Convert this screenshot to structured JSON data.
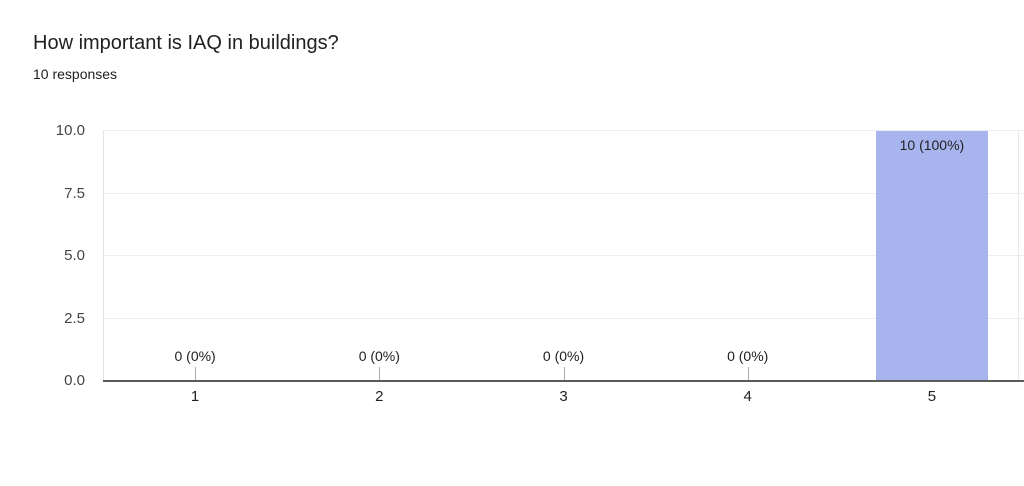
{
  "header": {
    "title": "How important is IAQ in buildings?",
    "subtitle": "10 responses"
  },
  "chart_data": {
    "type": "bar",
    "title": "How important is IAQ in buildings?",
    "subtitle": "10 responses",
    "categories": [
      "1",
      "2",
      "3",
      "4",
      "5"
    ],
    "values": [
      0,
      0,
      0,
      0,
      10
    ],
    "value_labels": [
      "0 (0%)",
      "0 (0%)",
      "0 (0%)",
      "0 (0%)",
      "10 (100%)"
    ],
    "xlabel": "",
    "ylabel": "",
    "ylim": [
      0,
      10
    ],
    "yticks": [
      0,
      2.5,
      5,
      7.5,
      10
    ],
    "ytick_labels": [
      "0.0",
      "2.5",
      "5.0",
      "7.5",
      "10.0"
    ],
    "grid": true,
    "legend": false,
    "colors": {
      "bar": "#a8b4ee",
      "gridline": "#eeeeee",
      "axis_line": "#5a5a5a",
      "label_text": "#212121",
      "tick_text": "#444444"
    }
  }
}
